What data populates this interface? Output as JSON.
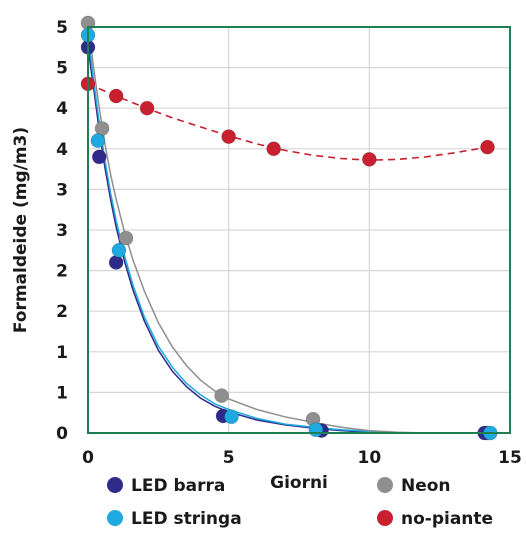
{
  "chart_data": {
    "type": "scatter",
    "title": "",
    "xlabel": "Giorni",
    "ylabel": "Formaldeide (mg/m3)",
    "xlim": [
      0,
      15
    ],
    "ylim": [
      0,
      5
    ],
    "x_ticks": [
      0,
      5,
      10,
      15
    ],
    "x_tick_labels": [
      "0",
      "5",
      "10",
      "15"
    ],
    "y_ticks": [
      0,
      0.5,
      1,
      1.5,
      2,
      2.5,
      3,
      3.5,
      4,
      4.5,
      5
    ],
    "y_tick_labels": [
      "0",
      "1",
      "1",
      "2",
      "2",
      "3",
      "3",
      "4",
      "4",
      "5",
      "5"
    ],
    "grid": true,
    "legend_position": "bottom",
    "series": [
      {
        "name": "LED barra",
        "color": "#2e2b8a",
        "line_style": "solid",
        "points": [
          [
            0,
            4.75
          ],
          [
            0.4,
            3.4
          ],
          [
            1.0,
            2.1
          ],
          [
            4.8,
            0.21
          ],
          [
            8.3,
            0.03
          ],
          [
            14.1,
            0.0
          ]
        ],
        "curve": [
          [
            0,
            4.75
          ],
          [
            0.2,
            4.25
          ],
          [
            0.4,
            3.72
          ],
          [
            0.6,
            3.27
          ],
          [
            0.8,
            2.88
          ],
          [
            1.0,
            2.54
          ],
          [
            1.3,
            2.11
          ],
          [
            1.6,
            1.76
          ],
          [
            2.0,
            1.38
          ],
          [
            2.5,
            1.02
          ],
          [
            3.0,
            0.76
          ],
          [
            3.5,
            0.57
          ],
          [
            4.0,
            0.43
          ],
          [
            4.5,
            0.33
          ],
          [
            5.0,
            0.26
          ],
          [
            6.0,
            0.16
          ],
          [
            7.0,
            0.1
          ],
          [
            8.0,
            0.06
          ],
          [
            9.0,
            0.03
          ],
          [
            10.0,
            0.01
          ],
          [
            11.0,
            0.0
          ],
          [
            12.0,
            0.0
          ],
          [
            14.1,
            0.0
          ]
        ]
      },
      {
        "name": "LED stringa",
        "color": "#1ea9e1",
        "line_style": "solid",
        "points": [
          [
            0,
            4.9
          ],
          [
            0.35,
            3.6
          ],
          [
            1.1,
            2.25
          ],
          [
            5.1,
            0.2
          ],
          [
            8.1,
            0.04
          ],
          [
            14.3,
            0.0
          ]
        ],
        "curve": [
          [
            0,
            4.9
          ],
          [
            0.2,
            4.34
          ],
          [
            0.4,
            3.82
          ],
          [
            0.6,
            3.36
          ],
          [
            0.8,
            2.96
          ],
          [
            1.0,
            2.62
          ],
          [
            1.3,
            2.18
          ],
          [
            1.6,
            1.82
          ],
          [
            2.0,
            1.43
          ],
          [
            2.5,
            1.07
          ],
          [
            3.0,
            0.81
          ],
          [
            3.5,
            0.61
          ],
          [
            4.0,
            0.47
          ],
          [
            4.5,
            0.36
          ],
          [
            5.0,
            0.29
          ],
          [
            6.0,
            0.18
          ],
          [
            7.0,
            0.11
          ],
          [
            8.0,
            0.07
          ],
          [
            9.0,
            0.04
          ],
          [
            10.0,
            0.02
          ],
          [
            11.0,
            0.0
          ],
          [
            12.0,
            0.0
          ],
          [
            14.3,
            0.0
          ]
        ]
      },
      {
        "name": "Neon",
        "color": "#8f8f8f",
        "line_style": "solid",
        "points": [
          [
            0,
            5.05
          ],
          [
            0.5,
            3.75
          ],
          [
            1.35,
            2.4
          ],
          [
            4.75,
            0.46
          ],
          [
            8.0,
            0.17
          ],
          [
            14.2,
            0.0
          ]
        ],
        "curve": [
          [
            0,
            5.05
          ],
          [
            0.2,
            4.5
          ],
          [
            0.4,
            4.0
          ],
          [
            0.6,
            3.56
          ],
          [
            0.8,
            3.19
          ],
          [
            1.0,
            2.88
          ],
          [
            1.3,
            2.47
          ],
          [
            1.6,
            2.13
          ],
          [
            2.0,
            1.75
          ],
          [
            2.5,
            1.36
          ],
          [
            3.0,
            1.06
          ],
          [
            3.5,
            0.83
          ],
          [
            4.0,
            0.65
          ],
          [
            4.5,
            0.52
          ],
          [
            5.0,
            0.42
          ],
          [
            6.0,
            0.29
          ],
          [
            7.0,
            0.2
          ],
          [
            8.0,
            0.13
          ],
          [
            9.0,
            0.07
          ],
          [
            10.0,
            0.03
          ],
          [
            11.0,
            0.01
          ],
          [
            12.0,
            0.0
          ],
          [
            14.2,
            0.0
          ]
        ]
      },
      {
        "name": "no-piante",
        "color": "#c8202f",
        "line_style": "dashed",
        "points": [
          [
            0,
            4.3
          ],
          [
            1.0,
            4.15
          ],
          [
            2.1,
            4.0
          ],
          [
            5.0,
            3.65
          ],
          [
            6.6,
            3.5
          ],
          [
            10.0,
            3.37
          ],
          [
            14.2,
            3.52
          ]
        ],
        "curve": [
          [
            0,
            4.3
          ],
          [
            1,
            4.15
          ],
          [
            2,
            4.01
          ],
          [
            3,
            3.88
          ],
          [
            4,
            3.77
          ],
          [
            5,
            3.66
          ],
          [
            6,
            3.56
          ],
          [
            7,
            3.48
          ],
          [
            8,
            3.42
          ],
          [
            9,
            3.38
          ],
          [
            10,
            3.36
          ],
          [
            11,
            3.37
          ],
          [
            12,
            3.4
          ],
          [
            13,
            3.45
          ],
          [
            14.2,
            3.52
          ]
        ]
      }
    ]
  }
}
